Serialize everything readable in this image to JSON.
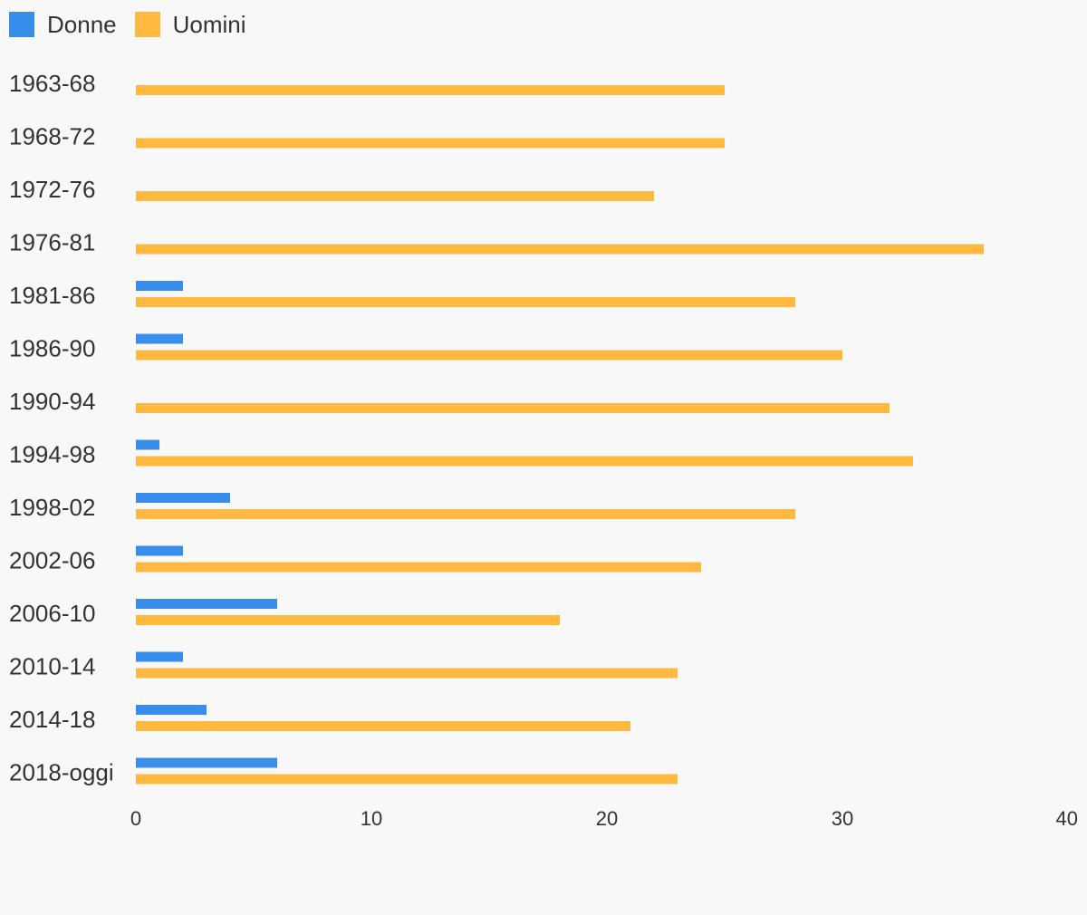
{
  "chart_data": {
    "type": "bar",
    "orientation": "horizontal",
    "categories": [
      "1963-68",
      "1968-72",
      "1972-76",
      "1976-81",
      "1981-86",
      "1986-90",
      "1990-94",
      "1994-98",
      "1998-02",
      "2002-06",
      "2006-10",
      "2010-14",
      "2014-18",
      "2018-oggi"
    ],
    "series": [
      {
        "name": "Donne",
        "color": "#3a8eeb",
        "values": [
          0,
          0,
          0,
          0,
          2,
          2,
          0,
          1,
          4,
          2,
          6,
          2,
          3,
          6
        ]
      },
      {
        "name": "Uomini",
        "color": "#ffb93e",
        "values": [
          25,
          25,
          22,
          36,
          28,
          30,
          32,
          33,
          28,
          24,
          18,
          23,
          21,
          23
        ]
      }
    ],
    "xlim": [
      0,
      40
    ],
    "xticks": [
      "0",
      "10",
      "20",
      "30",
      "40"
    ],
    "legend": "top-left",
    "grid": false,
    "title": "",
    "xlabel": "",
    "ylabel": ""
  }
}
